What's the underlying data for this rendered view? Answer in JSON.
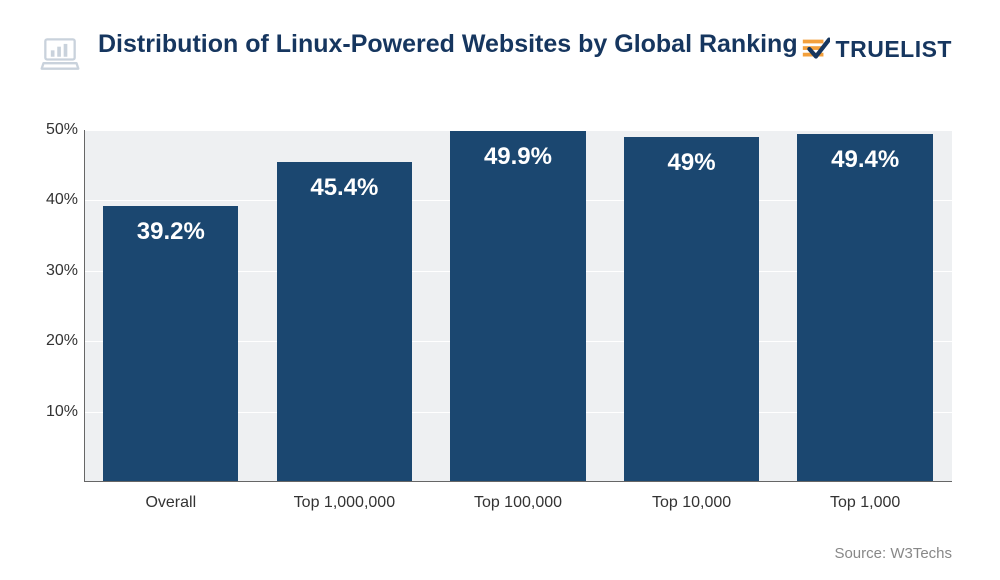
{
  "header": {
    "title": "Distribution of Linux-Powered Websites by Global Ranking",
    "title_color": "#16365f",
    "title_fontsize": 25,
    "logo_text": "TRUELIST",
    "logo_accent": "#f3a03c",
    "logo_color": "#16365f"
  },
  "chart": {
    "type": "bar",
    "categories": [
      "Overall",
      "Top 1,000,000",
      "Top 100,000",
      "Top 10,000",
      "Top 1,000"
    ],
    "values": [
      39.2,
      45.4,
      49.9,
      49,
      49.4
    ],
    "value_labels": [
      "39.2%",
      "45.4%",
      "49.9%",
      "49%",
      "49.4%"
    ],
    "bar_color": "#1b4770",
    "ylim": [
      0,
      50
    ],
    "yticks": [
      10,
      20,
      30,
      40,
      50
    ],
    "ytick_labels": [
      "10%",
      "20%",
      "30%",
      "40%",
      "50%"
    ],
    "plot_background": "#eef0f2",
    "grid_color": "#ffffff",
    "value_fontsize": 24,
    "value_color": "#ffffff",
    "axis_label_fontsize": 16,
    "axis_label_color": "#333333",
    "bar_width": 0.78
  },
  "source": {
    "label": "Source: W3Techs",
    "color": "#888888",
    "fontsize": 15
  }
}
